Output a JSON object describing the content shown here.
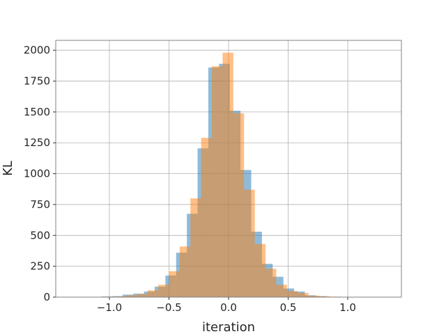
{
  "chart_data": {
    "type": "bar",
    "subtype": "overlaid-histogram",
    "xlabel": "iteration",
    "ylabel": "KL",
    "xlim": [
      -1.45,
      1.45
    ],
    "ylim": [
      0,
      2080
    ],
    "xticks": [
      -1.0,
      -0.5,
      0.0,
      0.5,
      1.0
    ],
    "xtick_labels": [
      "−1.0",
      "−0.5",
      "0.0",
      "0.5",
      "1.0"
    ],
    "yticks": [
      0,
      250,
      500,
      750,
      1000,
      1250,
      1500,
      1750,
      2000
    ],
    "ytick_labels": [
      "0",
      "250",
      "500",
      "750",
      "1000",
      "1250",
      "1500",
      "1750",
      "2000"
    ],
    "grid": true,
    "series": [
      {
        "color": "#1f77b4",
        "opacity": 0.5,
        "bin_edges": [
          -1.07,
          -0.98,
          -0.89,
          -0.8,
          -0.71,
          -0.62,
          -0.53,
          -0.44,
          -0.35,
          -0.26,
          -0.17,
          -0.08,
          0.01,
          0.1,
          0.19,
          0.28,
          0.37,
          0.46,
          0.55,
          0.64,
          0.73,
          0.82,
          0.91,
          1.0
        ],
        "counts": [
          5,
          8,
          20,
          28,
          45,
          85,
          175,
          360,
          675,
          1205,
          1860,
          1890,
          1510,
          1030,
          530,
          270,
          165,
          70,
          45,
          15,
          8,
          3,
          2
        ]
      },
      {
        "color": "#ff7f0e",
        "opacity": 0.5,
        "bin_edges": [
          -1.04,
          -0.95,
          -0.86,
          -0.77,
          -0.68,
          -0.59,
          -0.5,
          -0.41,
          -0.32,
          -0.23,
          -0.14,
          -0.05,
          0.04,
          0.13,
          0.22,
          0.31,
          0.4,
          0.49,
          0.58,
          0.67,
          0.76,
          0.85,
          0.94,
          1.03
        ],
        "counts": [
          4,
          6,
          15,
          25,
          55,
          100,
          210,
          410,
          800,
          1290,
          1870,
          1980,
          1490,
          870,
          430,
          230,
          100,
          50,
          35,
          12,
          8,
          4,
          2
        ]
      }
    ]
  }
}
